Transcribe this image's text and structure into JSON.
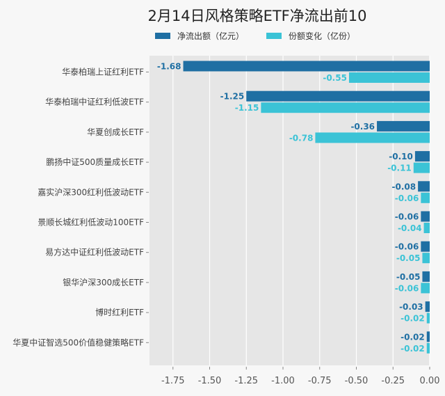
{
  "chart_data": {
    "type": "bar",
    "orientation": "horizontal",
    "title": "2月14日风格策略ETF净流出前10",
    "categories": [
      "华泰柏瑞上证红利ETF",
      "华泰柏瑞中证红利低波ETF",
      "华夏创成长ETF",
      "鹏扬中证500质量成长ETF",
      "嘉实沪深300红利低波动ETF",
      "景顺长城红利低波动100ETF",
      "易方达中证红利低波动ETF",
      "银华沪深300成长ETF",
      "博时红利ETF",
      "华夏中证智选500价值稳健策略ETF"
    ],
    "series": [
      {
        "name": "净流出额（亿元）",
        "color": "#1f6fa3",
        "values": [
          -1.68,
          -1.25,
          -0.36,
          -0.1,
          -0.08,
          -0.06,
          -0.06,
          -0.05,
          -0.03,
          -0.02
        ]
      },
      {
        "name": "份额变化（亿份）",
        "color": "#3bc3d6",
        "values": [
          -0.55,
          -1.15,
          -0.78,
          -0.11,
          -0.06,
          -0.04,
          -0.05,
          -0.06,
          -0.02,
          -0.02
        ]
      }
    ],
    "xticks": [
      -1.75,
      -1.5,
      -1.25,
      -1.0,
      -0.75,
      -0.5,
      -0.25,
      0.0
    ],
    "xtick_labels": [
      "-1.75",
      "-1.50",
      "-1.25",
      "-1.00",
      "-0.75",
      "-0.50",
      "-0.25",
      "0.00"
    ],
    "xlim": [
      -1.91,
      0.0
    ],
    "grid": true,
    "legend": "top"
  }
}
